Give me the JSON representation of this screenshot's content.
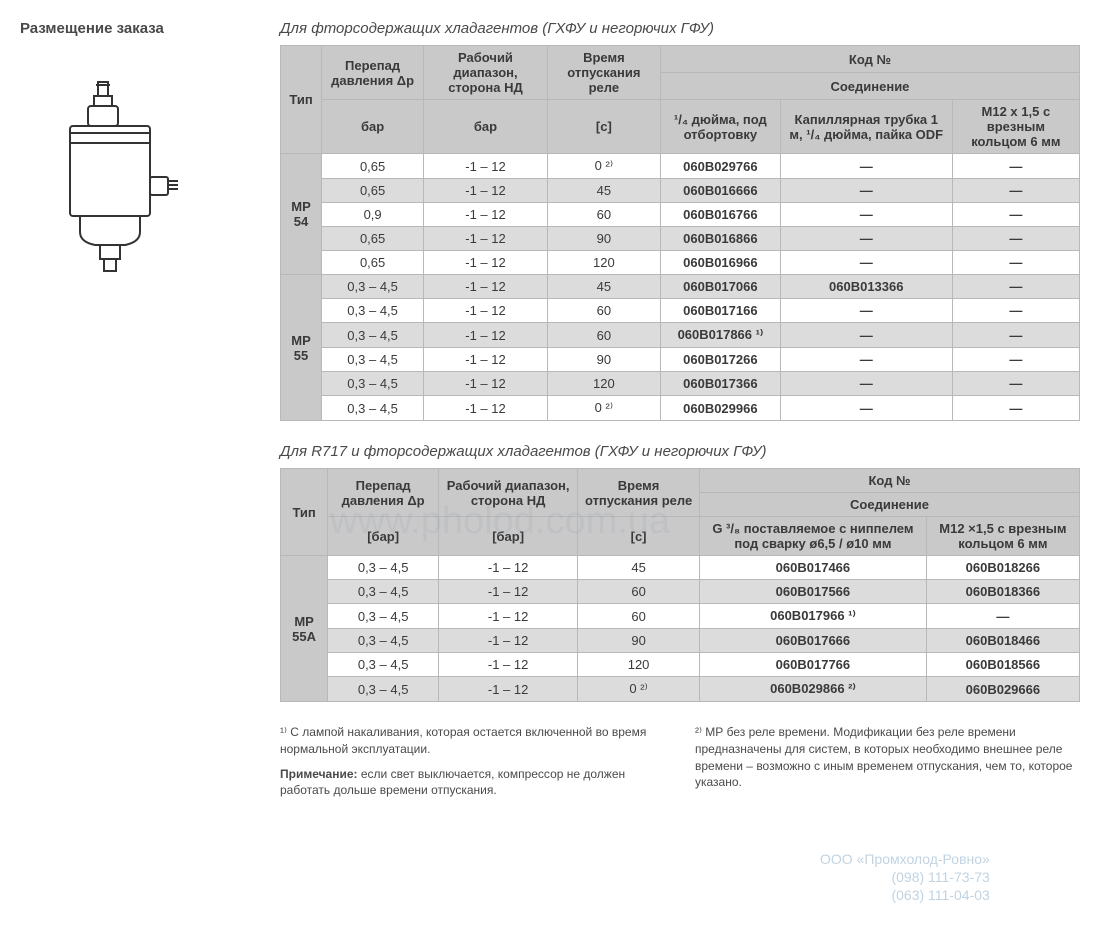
{
  "page": {
    "title": "Размещение заказа"
  },
  "table1": {
    "caption": "Для фторсодержащих хладагентов (ГХФУ и негорючих ГФУ)",
    "headers": {
      "type": "Тип",
      "dp": "Перепад давления Δp",
      "dp_unit": "бар",
      "range": "Рабочий диапазон, сторона НД",
      "range_unit": "бар",
      "time": "Время отпускания реле",
      "time_unit": "[c]",
      "code": "Код №",
      "conn": "Соединение",
      "conn1": "¹/₄ дюйма, под отбортовку",
      "conn2": "Капиллярная трубка 1 м, ¹/₄ дюйма, пайка ODF",
      "conn3": "M12 x 1,5 с врезным кольцом 6 мм"
    },
    "groups": [
      {
        "type": "MP 54",
        "rows": [
          {
            "dp": "0,65",
            "range": "-1 – 12",
            "time": "0 ²⁾",
            "c1": "060B029766",
            "c2": "—",
            "c3": "—",
            "shade": "light"
          },
          {
            "dp": "0,65",
            "range": "-1 – 12",
            "time": "45",
            "c1": "060B016666",
            "c2": "—",
            "c3": "—",
            "shade": "dark"
          },
          {
            "dp": "0,9",
            "range": "-1 – 12",
            "time": "60",
            "c1": "060B016766",
            "c2": "—",
            "c3": "—",
            "shade": "light"
          },
          {
            "dp": "0,65",
            "range": "-1 – 12",
            "time": "90",
            "c1": "060B016866",
            "c2": "—",
            "c3": "—",
            "shade": "dark"
          },
          {
            "dp": "0,65",
            "range": "-1 – 12",
            "time": "120",
            "c1": "060B016966",
            "c2": "—",
            "c3": "—",
            "shade": "light"
          }
        ]
      },
      {
        "type": "MP 55",
        "rows": [
          {
            "dp": "0,3 – 4,5",
            "range": "-1 – 12",
            "time": "45",
            "c1": "060B017066",
            "c2": "060B013366",
            "c3": "—",
            "shade": "dark"
          },
          {
            "dp": "0,3 – 4,5",
            "range": "-1  –  12",
            "time": "60",
            "c1": "060B017166",
            "c2": "—",
            "c3": "—",
            "shade": "light"
          },
          {
            "dp": "0,3 – 4,5",
            "range": "-1  –  12",
            "time": "60",
            "c1": "060B017866 ¹⁾",
            "c2": "—",
            "c3": "—",
            "shade": "dark"
          },
          {
            "dp": "0,3 – 4,5",
            "range": "-1  –  12",
            "time": "90",
            "c1": "060B017266",
            "c2": "—",
            "c3": "—",
            "shade": "light"
          },
          {
            "dp": "0,3 – 4,5",
            "range": "-1 – 12",
            "time": "120",
            "c1": "060B017366",
            "c2": "—",
            "c3": "—",
            "shade": "dark"
          },
          {
            "dp": "0,3 – 4,5",
            "range": "-1 – 12",
            "time": "0 ²⁾",
            "c1": "060B029966",
            "c2": "—",
            "c3": "—",
            "shade": "light"
          }
        ]
      }
    ]
  },
  "table2": {
    "caption": "Для R717 и фторсодержащих хладагентов (ГХФУ и негорючих ГФУ)",
    "headers": {
      "type": "Тип",
      "dp": "Перепад давления Δp",
      "dp_unit": "[бар]",
      "range": "Рабочий диапазон, сторона НД",
      "range_unit": "[бар]",
      "time": "Время отпускания реле",
      "time_unit": "[c]",
      "code": "Код №",
      "conn": "Соединение",
      "conn1": "G ³/₈ поставляемое с ниппелем под сварку ø6,5 / ø10 мм",
      "conn2": "M12 ×1,5 с врезным кольцом 6 мм"
    },
    "group": {
      "type": "MP 55A",
      "rows": [
        {
          "dp": "0,3 – 4,5",
          "range": "-1 – 12",
          "time": "45",
          "c1": "060B017466",
          "c2": "060B018266",
          "shade": "light"
        },
        {
          "dp": "0,3 – 4,5",
          "range": "-1 – 12",
          "time": "60",
          "c1": "060B017566",
          "c2": "060B018366",
          "shade": "dark"
        },
        {
          "dp": "0,3 – 4,5",
          "range": "-1 – 12",
          "time": "60",
          "c1": "060B017966 ¹⁾",
          "c2": "—",
          "shade": "light"
        },
        {
          "dp": "0,3 – 4,5",
          "range": "-1 – 12",
          "time": "90",
          "c1": "060B017666",
          "c2": "060B018466",
          "shade": "dark"
        },
        {
          "dp": "0,3 – 4,5",
          "range": "-1 – 12",
          "time": "120",
          "c1": "060B017766",
          "c2": "060B018566",
          "shade": "light"
        },
        {
          "dp": "0,3 – 4,5",
          "range": "-1 – 12",
          "time": "0 ²⁾",
          "c1": "060B029866 ²⁾",
          "c2": "060B029666",
          "shade": "dark"
        }
      ]
    }
  },
  "footnotes": {
    "f1": "¹⁾ С лампой накаливания, которая остается включенной во время нормальной эксплуатации.",
    "note_label": "Примечание:",
    "note": " если свет выключается, компрессор не должен работать дольше времени отпускания.",
    "f2": "²⁾ МР без реле времени. Модификации без реле времени предназначены для систем, в которых необходимо внешнее реле времени – возможно с иным временем отпускания, чем то, которое указано."
  },
  "watermark": {
    "text": "www.pholod.com.ua",
    "contact_name": "ООО «Промхолод-Ровно»",
    "contact_phone1": "(098) 111-73-73",
    "contact_phone2": "(063) 111-04-03"
  },
  "colors": {
    "header_bg": "#c9c9c9",
    "row_dark": "#dcdcdc",
    "row_light": "#ffffff",
    "border": "#b8b8b8",
    "text": "#3a3a3a"
  }
}
